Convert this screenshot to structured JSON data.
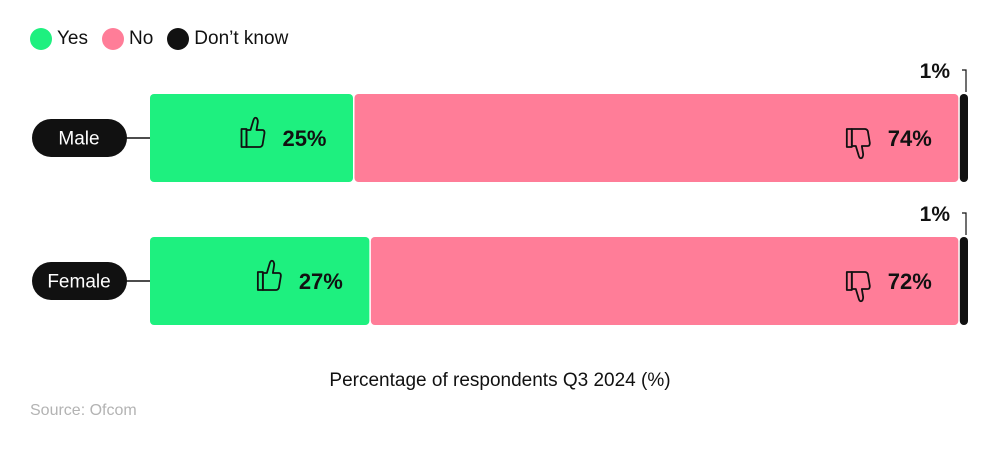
{
  "legend": {
    "yes": "Yes",
    "no": "No",
    "dont_know": "Don’t know"
  },
  "colors": {
    "yes": "#1ef07f",
    "no": "#ff7d98",
    "dont_know": "#111111",
    "label_pill": "#111111"
  },
  "icons": {
    "yes": "thumbs-up-icon",
    "no": "thumbs-down-icon"
  },
  "chart_data": {
    "type": "bar",
    "orientation": "horizontal",
    "stacked": true,
    "categories": [
      "Male",
      "Female"
    ],
    "series": [
      {
        "name": "Yes",
        "values": [
          25,
          27
        ],
        "labels": [
          "25%",
          "27%"
        ]
      },
      {
        "name": "No",
        "values": [
          74,
          72
        ],
        "labels": [
          "74%",
          "72%"
        ]
      },
      {
        "name": "Don’t know",
        "values": [
          1,
          1
        ],
        "labels": [
          "1%",
          "1%"
        ]
      }
    ],
    "xlabel": "Percentage of respondents Q3 2024 (%)",
    "xlim": [
      0,
      100
    ],
    "legend_position": "top-left",
    "grid": false
  },
  "source": "Source: Ofcom"
}
